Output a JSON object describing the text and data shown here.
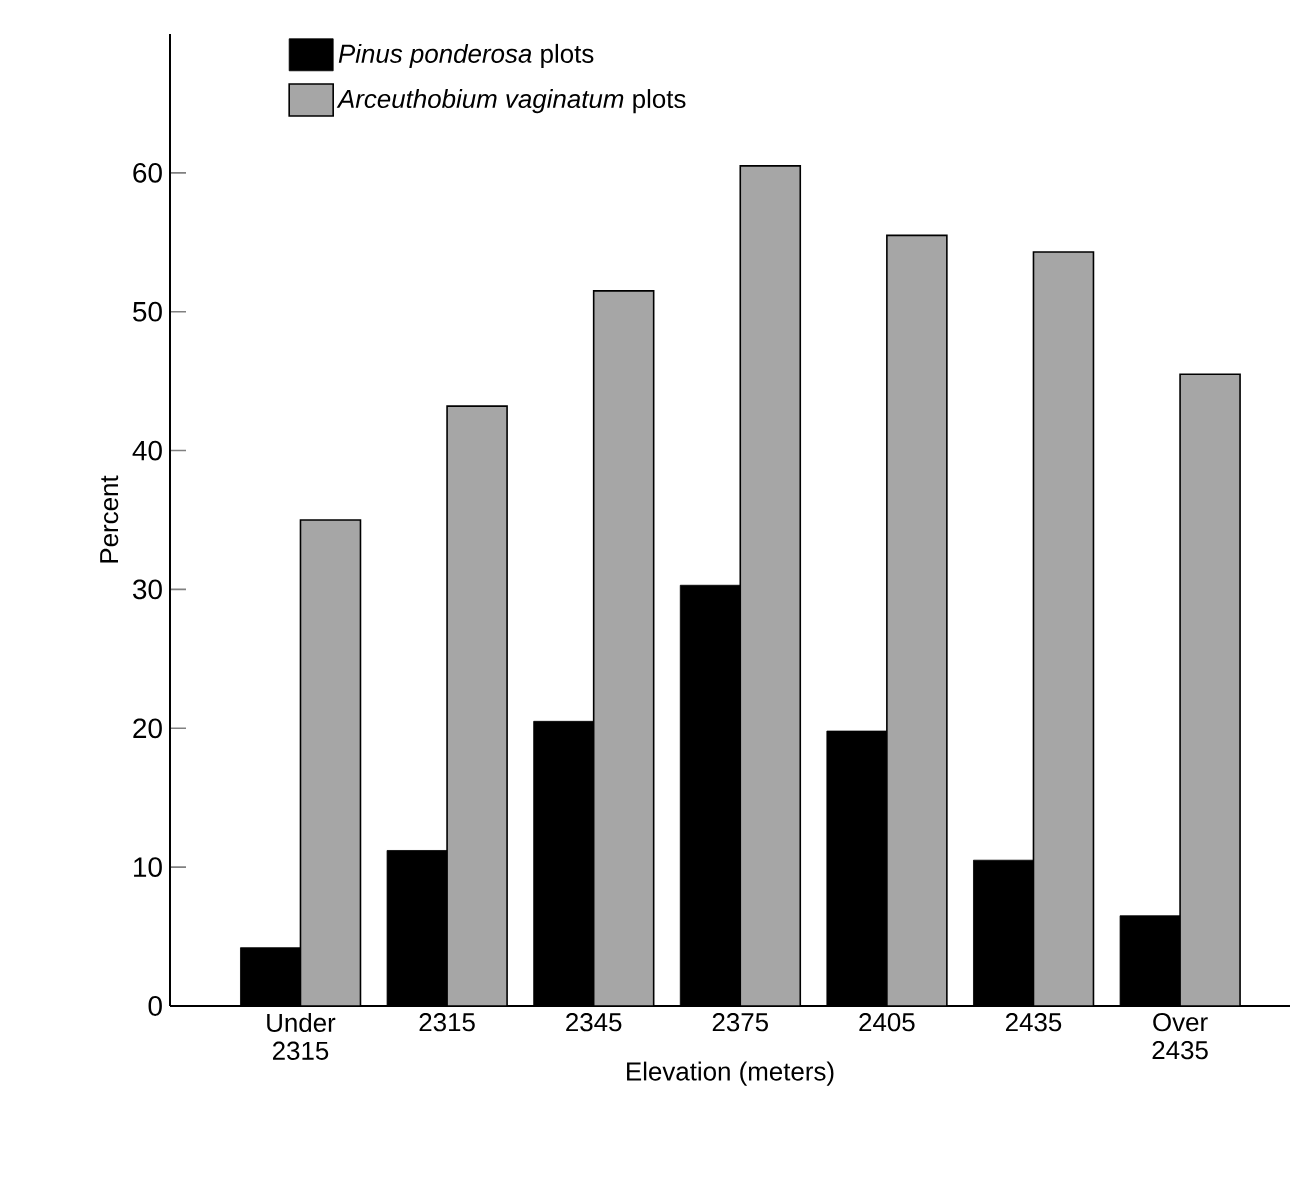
{
  "chart_data": {
    "type": "bar",
    "categories": [
      "Under 2315",
      "2315",
      "2345",
      "2375",
      "2405",
      "2435",
      "Over 2435"
    ],
    "series": [
      {
        "name": "*Pinus ponderosa* plots",
        "color": "#000000",
        "values": [
          4.2,
          11.2,
          20.5,
          30.3,
          19.8,
          10.5,
          6.5
        ]
      },
      {
        "name": "*Arceuthobium vaginatum* plots",
        "color": "#a6a6a6",
        "values": [
          35,
          43.2,
          51.5,
          60.5,
          55.5,
          54.3,
          45.5
        ]
      }
    ],
    "xlabel": "Elevation (meters)",
    "ylabel": "Percent",
    "ylim": [
      0,
      70
    ],
    "yticks": [
      0,
      10,
      20,
      30,
      40,
      50,
      60
    ],
    "legend": "top left",
    "grid": false
  }
}
